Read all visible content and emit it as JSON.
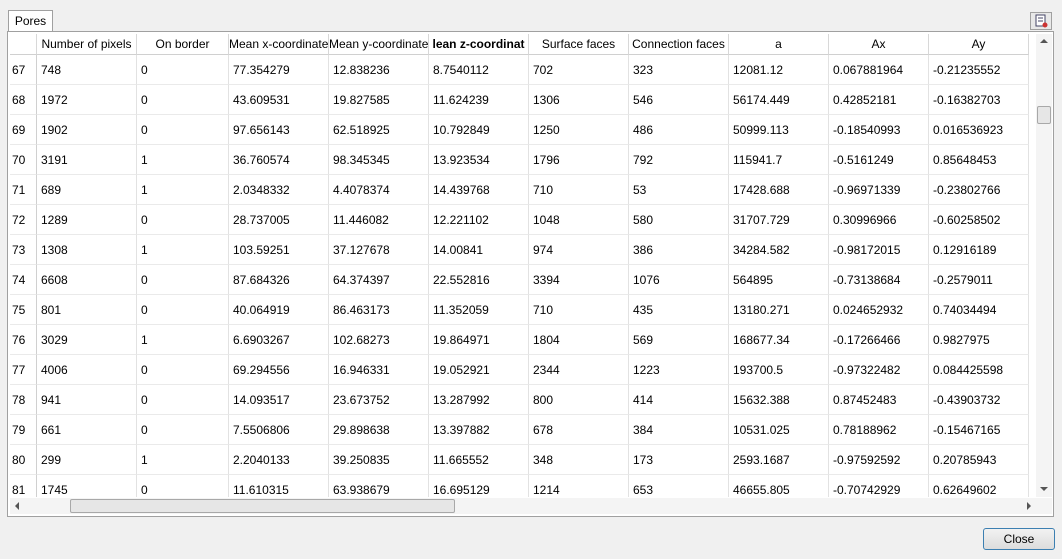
{
  "tab": {
    "label": "Pores"
  },
  "table": {
    "headers": [
      "Number of pixels",
      "On border",
      "Mean x-coordinate",
      "Mean y-coordinate",
      "lean z-coordinat",
      "Surface faces",
      "Connection faces",
      "a",
      "Ax",
      "Ay"
    ],
    "row_labels": [
      "67",
      "68",
      "69",
      "70",
      "71",
      "72",
      "73",
      "74",
      "75",
      "76",
      "77",
      "78",
      "79",
      "80",
      "81"
    ],
    "rows": [
      [
        "748",
        "0",
        "77.354279",
        "12.838236",
        "8.7540112",
        "702",
        "323",
        "12081.12",
        "0.067881964",
        "-0.21235552"
      ],
      [
        "1972",
        "0",
        "43.609531",
        "19.827585",
        "11.624239",
        "1306",
        "546",
        "56174.449",
        "0.42852181",
        "-0.16382703"
      ],
      [
        "1902",
        "0",
        "97.656143",
        "62.518925",
        "10.792849",
        "1250",
        "486",
        "50999.113",
        "-0.18540993",
        "0.016536923"
      ],
      [
        "3191",
        "1",
        "36.760574",
        "98.345345",
        "13.923534",
        "1796",
        "792",
        "115941.7",
        "-0.5161249",
        "0.85648453"
      ],
      [
        "689",
        "1",
        "2.0348332",
        "4.4078374",
        "14.439768",
        "710",
        "53",
        "17428.688",
        "-0.96971339",
        "-0.23802766"
      ],
      [
        "1289",
        "0",
        "28.737005",
        "11.446082",
        "12.221102",
        "1048",
        "580",
        "31707.729",
        "0.30996966",
        "-0.60258502"
      ],
      [
        "1308",
        "1",
        "103.59251",
        "37.127678",
        "14.00841",
        "974",
        "386",
        "34284.582",
        "-0.98172015",
        "0.12916189"
      ],
      [
        "6608",
        "0",
        "87.684326",
        "64.374397",
        "22.552816",
        "3394",
        "1076",
        "564895",
        "-0.73138684",
        "-0.2579011"
      ],
      [
        "801",
        "0",
        "40.064919",
        "86.463173",
        "11.352059",
        "710",
        "435",
        "13180.271",
        "0.024652932",
        "0.74034494"
      ],
      [
        "3029",
        "1",
        "6.6903267",
        "102.68273",
        "19.864971",
        "1804",
        "569",
        "168677.34",
        "-0.17266466",
        "0.9827975"
      ],
      [
        "4006",
        "0",
        "69.294556",
        "16.946331",
        "19.052921",
        "2344",
        "1223",
        "193700.5",
        "-0.97322482",
        "0.084425598"
      ],
      [
        "941",
        "0",
        "14.093517",
        "23.673752",
        "13.287992",
        "800",
        "414",
        "15632.388",
        "0.87452483",
        "-0.43903732"
      ],
      [
        "661",
        "0",
        "7.5506806",
        "29.898638",
        "13.397882",
        "678",
        "384",
        "10531.025",
        "0.78188962",
        "-0.15467165"
      ],
      [
        "299",
        "1",
        "2.2040133",
        "39.250835",
        "11.665552",
        "348",
        "173",
        "2593.1687",
        "-0.97592592",
        "0.20785943"
      ],
      [
        "1745",
        "0",
        "11.610315",
        "63.938679",
        "16.695129",
        "1214",
        "653",
        "46655.805",
        "-0.70742929",
        "0.62649602"
      ]
    ]
  },
  "close_button": {
    "label": "Close"
  }
}
